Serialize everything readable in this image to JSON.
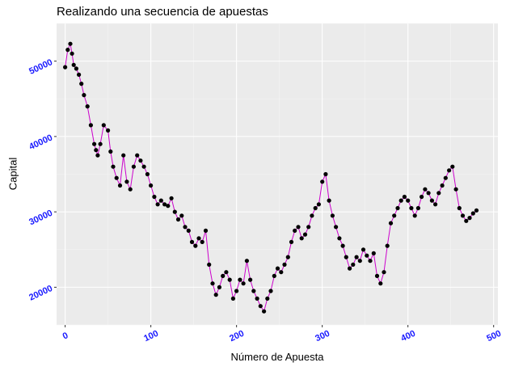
{
  "chart_data": {
    "type": "line",
    "title": "Realizando una secuencia de apuestas",
    "xlabel": "Número de Apuesta",
    "ylabel": "Capital",
    "xlim": [
      -10,
      505
    ],
    "ylim": [
      15000,
      55000
    ],
    "x_ticks": [
      0,
      100,
      200,
      300,
      400,
      500
    ],
    "y_ticks": [
      20000,
      30000,
      40000,
      50000
    ],
    "x_tick_labels": [
      "0",
      "100",
      "200",
      "300",
      "400",
      "500"
    ],
    "y_tick_labels": [
      "20000",
      "30000",
      "40000",
      "50000"
    ],
    "grid": true,
    "colors": {
      "panel_background": "#ebebeb",
      "grid_major": "#ffffff",
      "line": "#cc00cc",
      "points": "#000000",
      "tick_labels": "#1a1aff"
    },
    "series": [
      {
        "x": [
          0,
          3,
          6,
          8,
          10,
          13,
          16,
          19,
          22,
          26,
          30,
          34,
          36,
          38,
          41,
          45,
          50,
          53,
          56,
          60,
          64,
          68,
          72,
          76,
          80,
          84,
          88,
          92,
          96,
          100,
          104,
          108,
          112,
          116,
          120,
          124,
          128,
          132,
          136,
          140,
          144,
          148,
          152,
          156,
          160,
          164,
          168,
          172,
          176,
          180,
          184,
          188,
          192,
          196,
          200,
          204,
          208,
          212,
          216,
          220,
          224,
          228,
          232,
          236,
          240,
          244,
          248,
          252,
          256,
          260,
          264,
          268,
          272,
          276,
          280,
          284,
          288,
          292,
          296,
          300,
          304,
          308,
          312,
          316,
          320,
          324,
          328,
          332,
          336,
          340,
          344,
          348,
          352,
          356,
          360,
          364,
          368,
          372,
          376,
          380,
          384,
          388,
          392,
          396,
          400,
          404,
          408,
          412,
          416,
          420,
          424,
          428,
          432,
          436,
          440,
          444,
          448,
          452,
          456,
          460,
          464,
          468,
          472,
          476,
          480
        ],
        "y": [
          49200,
          51500,
          52300,
          51000,
          49500,
          49000,
          48200,
          47000,
          45500,
          44000,
          41500,
          39000,
          38200,
          37500,
          39000,
          41500,
          40800,
          38000,
          36000,
          34500,
          33500,
          37500,
          34000,
          33000,
          36000,
          37500,
          36800,
          36000,
          35000,
          33500,
          32000,
          31000,
          31500,
          31000,
          30800,
          31800,
          30000,
          29000,
          29500,
          28000,
          27500,
          26000,
          25500,
          26500,
          26000,
          27500,
          23000,
          20500,
          19000,
          20000,
          21500,
          22000,
          21000,
          18500,
          19500,
          21000,
          20500,
          23500,
          21000,
          19500,
          18500,
          17500,
          16800,
          18500,
          19500,
          21500,
          22500,
          22000,
          23000,
          24000,
          26000,
          27500,
          28000,
          26500,
          27000,
          28000,
          29500,
          30500,
          31000,
          34000,
          35000,
          31500,
          29500,
          28000,
          26500,
          25500,
          24000,
          22500,
          23000,
          24000,
          23500,
          25000,
          24200,
          23500,
          24500,
          21500,
          20500,
          22000,
          25500,
          28500,
          29500,
          30500,
          31500,
          32000,
          31500,
          30500,
          29500,
          30500,
          32000,
          33000,
          32500,
          31500,
          31000,
          32500,
          33500,
          34500,
          35500,
          36000,
          33000,
          30500,
          29500,
          28800,
          29200,
          29800,
          30200
        ]
      }
    ]
  }
}
